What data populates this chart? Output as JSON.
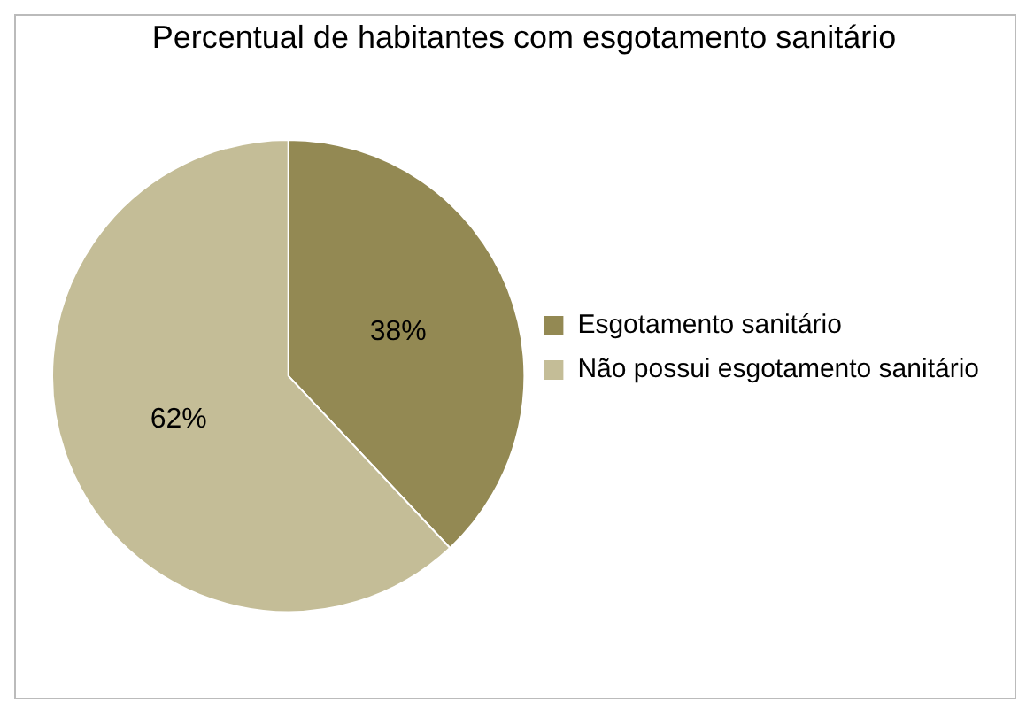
{
  "chart_data": {
    "type": "pie",
    "title": "Percentual de habitantes com esgotamento sanitário",
    "categories": [
      "Esgotamento sanitário",
      "Não possui esgotamento sanitário"
    ],
    "values": [
      38,
      62
    ],
    "colors": [
      "#938953",
      "#c4bd97"
    ],
    "value_labels": [
      "38%",
      "62%"
    ],
    "legend": "right"
  }
}
